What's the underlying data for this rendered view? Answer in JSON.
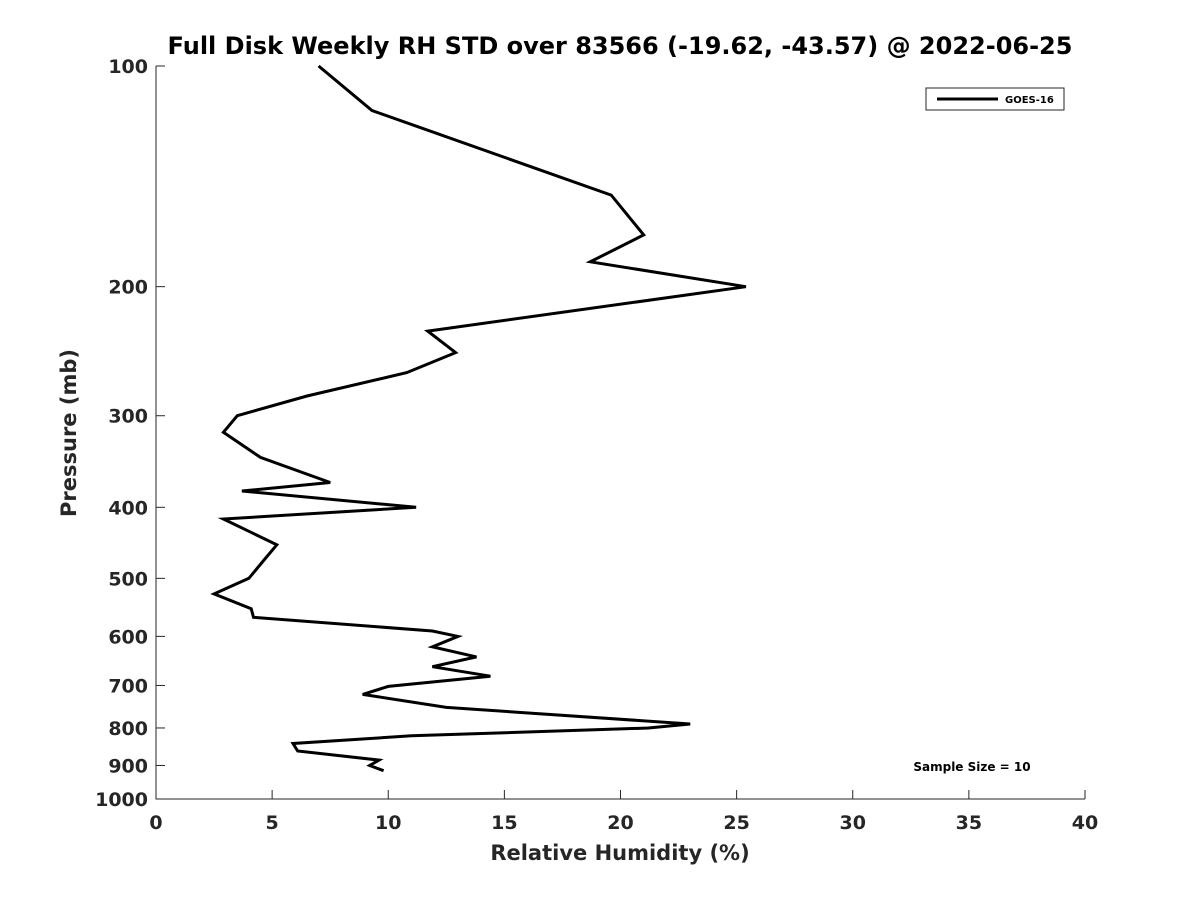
{
  "chart_data": {
    "type": "line",
    "title": "Full Disk Weekly RH STD over 83566 (-19.62, -43.57) @ 2022-06-25",
    "xlabel": "Relative Humidity (%)",
    "ylabel": "Pressure (mb)",
    "xlim": [
      0,
      40
    ],
    "ylim": [
      100,
      1000
    ],
    "y_scale": "log",
    "y_reversed": true,
    "x_ticks": [
      0,
      5,
      10,
      15,
      20,
      25,
      30,
      35,
      40
    ],
    "x_tick_labels": [
      "0",
      "5",
      "10",
      "15",
      "20",
      "25",
      "30",
      "35",
      "40"
    ],
    "y_ticks": [
      100,
      200,
      300,
      400,
      500,
      600,
      700,
      800,
      900,
      1000
    ],
    "y_tick_labels": [
      "100",
      "200",
      "300",
      "400",
      "500",
      "600",
      "700",
      "800",
      "900",
      "1000"
    ],
    "legend_position": "top-right",
    "series": [
      {
        "name": "GOES-16",
        "color": "#000000",
        "x": [
          7.0,
          9.3,
          19.6,
          21.0,
          18.7,
          25.4,
          11.7,
          12.9,
          10.8,
          6.5,
          3.5,
          2.9,
          4.5,
          7.5,
          3.7,
          11.2,
          2.9,
          5.2,
          4.7,
          4.0,
          2.5,
          4.1,
          4.2,
          11.9,
          13.0,
          11.9,
          13.8,
          11.9,
          14.4,
          10.0,
          8.9,
          12.5,
          23.0,
          21.2,
          11.0,
          5.9,
          6.1,
          9.6,
          9.2,
          9.8
        ],
        "y": [
          100,
          115,
          150,
          170,
          185,
          200,
          230,
          246,
          262,
          282,
          300,
          316,
          342,
          370,
          380,
          400,
          415,
          450,
          470,
          500,
          525,
          550,
          565,
          590,
          600,
          620,
          640,
          660,
          680,
          702,
          720,
          750,
          790,
          800,
          820,
          840,
          860,
          885,
          900,
          915
        ]
      }
    ],
    "annotations": [
      "Sample Size = 10"
    ]
  }
}
